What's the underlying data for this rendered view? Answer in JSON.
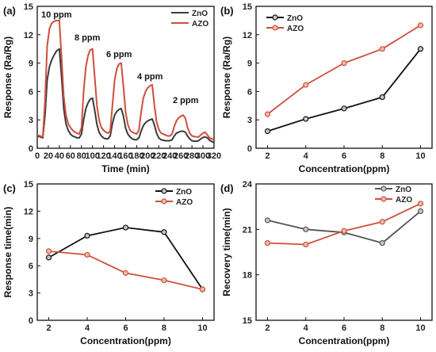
{
  "colors": {
    "zno": "#3b3b3b",
    "azo": "#cd4f3c",
    "azo_marker": "#f2bba8",
    "zno_marker": "#c8c8c8"
  },
  "chart_data": [
    {
      "id": "a",
      "panel_label": "(a)",
      "type": "line",
      "xlabel": "Time (min)",
      "ylabel": "Response (Ra/Rg)",
      "xlim": [
        0,
        320
      ],
      "ylim": [
        0,
        15
      ],
      "xticks": [
        0,
        20,
        40,
        60,
        80,
        100,
        120,
        140,
        160,
        180,
        200,
        220,
        240,
        260,
        280,
        300,
        320
      ],
      "yticks": [
        0,
        3,
        6,
        9,
        12,
        15
      ],
      "legend_position": "top-right",
      "annotations": [
        "10 ppm",
        "8 ppm",
        "6 ppm",
        "4 ppm",
        "2 ppm"
      ],
      "series": [
        {
          "name": "ZnO",
          "color": "#3b3b3b",
          "x": [
            0,
            5,
            10,
            14,
            18,
            22,
            26,
            30,
            35,
            40,
            44,
            48,
            52,
            56,
            60,
            64,
            68,
            72,
            76,
            80,
            84,
            88,
            92,
            96,
            100,
            104,
            108,
            112,
            116,
            120,
            124,
            128,
            132,
            136,
            140,
            144,
            148,
            152,
            156,
            160,
            164,
            168,
            172,
            176,
            180,
            184,
            188,
            192,
            196,
            200,
            204,
            208,
            212,
            216,
            220,
            224,
            228,
            232,
            236,
            240,
            244,
            248,
            252,
            256,
            260,
            264,
            268,
            272,
            276,
            280,
            284,
            288,
            292,
            296,
            300,
            304,
            308,
            312,
            316,
            320
          ],
          "y": [
            1.3,
            1.2,
            1.1,
            3.5,
            7.2,
            8.6,
            9.3,
            9.8,
            10.3,
            10.5,
            7.5,
            4.2,
            2.6,
            1.9,
            1.5,
            1.3,
            1.2,
            1.1,
            1.1,
            1.5,
            3.0,
            4.2,
            4.8,
            5.2,
            5.3,
            4.0,
            2.5,
            1.7,
            1.3,
            1.1,
            1.0,
            1.0,
            1.3,
            2.6,
            3.5,
            3.9,
            4.1,
            4.2,
            3.4,
            2.1,
            1.5,
            1.2,
            1.0,
            0.9,
            0.9,
            1.1,
            1.8,
            2.4,
            2.7,
            2.9,
            3.0,
            3.1,
            2.5,
            1.6,
            1.1,
            0.9,
            0.85,
            0.8,
            0.8,
            0.8,
            0.9,
            1.3,
            1.6,
            1.7,
            1.8,
            1.8,
            1.7,
            1.3,
            1.0,
            0.8,
            0.75,
            0.75,
            0.8,
            1.0,
            1.15,
            1.2,
            1.1,
            0.85,
            0.7,
            0.6
          ]
        },
        {
          "name": "AZO",
          "color": "#cd4f3c",
          "x": [
            0,
            5,
            10,
            14,
            18,
            22,
            26,
            30,
            35,
            40,
            44,
            48,
            52,
            56,
            60,
            64,
            68,
            72,
            76,
            80,
            84,
            88,
            92,
            96,
            100,
            104,
            108,
            112,
            116,
            120,
            124,
            128,
            132,
            136,
            140,
            144,
            148,
            152,
            156,
            160,
            164,
            168,
            172,
            176,
            180,
            184,
            188,
            192,
            196,
            200,
            204,
            208,
            212,
            216,
            220,
            224,
            228,
            232,
            236,
            240,
            244,
            248,
            252,
            256,
            260,
            264,
            268,
            272,
            276,
            280,
            284,
            288,
            292,
            296,
            300,
            304,
            308,
            312,
            316,
            320
          ],
          "y": [
            1.4,
            1.3,
            1.2,
            5.0,
            10.8,
            12.6,
            13.2,
            13.4,
            13.5,
            13.5,
            9.5,
            5.5,
            3.5,
            2.6,
            2.2,
            1.9,
            1.7,
            1.6,
            1.5,
            2.2,
            6.0,
            8.6,
            9.8,
            10.4,
            10.5,
            7.5,
            4.5,
            3.0,
            2.2,
            1.9,
            1.7,
            1.6,
            1.8,
            4.5,
            7.2,
            8.4,
            8.9,
            9.0,
            6.5,
            3.8,
            2.5,
            1.9,
            1.7,
            1.6,
            1.5,
            1.9,
            3.8,
            5.3,
            6.0,
            6.4,
            6.6,
            6.7,
            4.6,
            2.8,
            2.0,
            1.6,
            1.5,
            1.4,
            1.3,
            1.3,
            1.5,
            2.3,
            2.9,
            3.2,
            3.4,
            3.5,
            3.2,
            2.2,
            1.6,
            1.3,
            1.25,
            1.2,
            1.2,
            1.4,
            1.6,
            1.7,
            1.4,
            1.1,
            1.0,
            0.9
          ]
        }
      ]
    },
    {
      "id": "b",
      "panel_label": "(b)",
      "type": "line",
      "xlabel": "Concentration(ppm)",
      "ylabel": "Response (Ra/Rg)",
      "xlim": [
        1.4,
        10.6
      ],
      "ylim": [
        0,
        15
      ],
      "xticks": [
        2,
        4,
        6,
        8,
        10
      ],
      "yticks": [
        0,
        3,
        6,
        9,
        12,
        15
      ],
      "legend_position": "top-left",
      "series": [
        {
          "name": "ZnO",
          "color": "#111111",
          "x": [
            2,
            4,
            6,
            8,
            10
          ],
          "y": [
            1.8,
            3.1,
            4.2,
            5.4,
            10.5
          ]
        },
        {
          "name": "AZO",
          "color": "#cd4f3c",
          "x": [
            2,
            4,
            6,
            8,
            10
          ],
          "y": [
            3.6,
            6.7,
            9.0,
            10.5,
            13.0
          ]
        }
      ]
    },
    {
      "id": "c",
      "panel_label": "(c)",
      "type": "line",
      "xlabel": "Concentration(ppm)",
      "ylabel": "Response time(min)",
      "xlim": [
        1.4,
        10.6
      ],
      "ylim": [
        0,
        15
      ],
      "xticks": [
        2,
        4,
        6,
        8,
        10
      ],
      "yticks": [
        0,
        3,
        6,
        9,
        12,
        15
      ],
      "legend_position": "top-right",
      "series": [
        {
          "name": "ZnO",
          "color": "#111111",
          "x": [
            2,
            4,
            6,
            8,
            10
          ],
          "y": [
            6.9,
            9.3,
            10.2,
            9.7,
            3.4
          ]
        },
        {
          "name": "AZO",
          "color": "#cd4f3c",
          "x": [
            2,
            4,
            6,
            8,
            10
          ],
          "y": [
            7.6,
            7.2,
            5.2,
            4.4,
            3.4
          ]
        }
      ]
    },
    {
      "id": "d",
      "panel_label": "(d)",
      "type": "line",
      "xlabel": "Concentration(ppm)",
      "ylabel": "Recovery time(min)",
      "xlim": [
        1.4,
        10.6
      ],
      "ylim": [
        15,
        24
      ],
      "xticks": [
        2,
        4,
        6,
        8,
        10
      ],
      "yticks": [
        15,
        18,
        21,
        24
      ],
      "legend_position": "top-right",
      "series": [
        {
          "name": "ZnO",
          "color": "#555555",
          "x": [
            2,
            4,
            6,
            8,
            10
          ],
          "y": [
            21.6,
            21.0,
            20.8,
            20.1,
            22.2
          ]
        },
        {
          "name": "AZO",
          "color": "#cd4f3c",
          "x": [
            2,
            4,
            6,
            8,
            10
          ],
          "y": [
            20.1,
            20.0,
            20.9,
            21.5,
            22.7
          ]
        }
      ]
    }
  ]
}
